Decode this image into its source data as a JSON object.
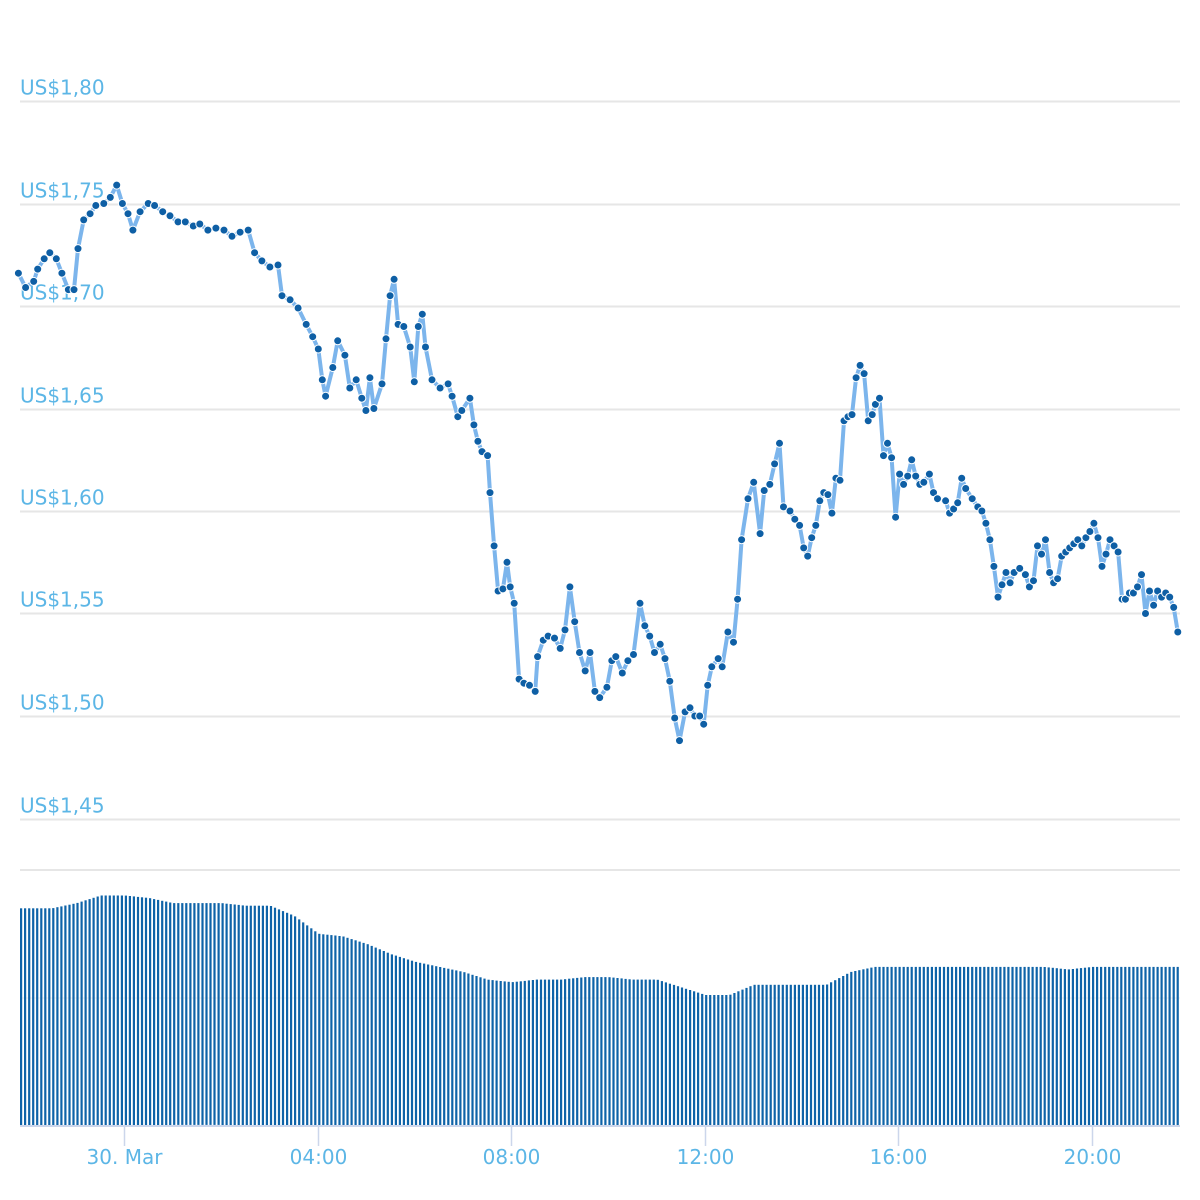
{
  "chart_data": {
    "type": "line",
    "title": "",
    "xlabel": "",
    "ylabel": "",
    "ylim": [
      1.4,
      1.8
    ],
    "y_ticks": [
      "US$1,80",
      "US$1,75",
      "US$1,70",
      "US$1,65",
      "US$1,60",
      "US$1,55",
      "US$1,50",
      "US$1,45"
    ],
    "y_tick_values": [
      1.8,
      1.75,
      1.7,
      1.65,
      1.6,
      1.55,
      1.5,
      1.45
    ],
    "x_ticks": [
      "30. Mar",
      "04:00",
      "08:00",
      "12:00",
      "16:00",
      "20:00"
    ],
    "x_tick_times": [
      "00:00",
      "04:00",
      "08:00",
      "12:00",
      "16:00",
      "20:00"
    ],
    "x_range": [
      "21:49",
      "21:47"
    ],
    "grid": true,
    "colors": {
      "line": "#7cb5ec",
      "marker": "#0e5fa5",
      "volume": "#0e63a8",
      "label": "#5cb6e6",
      "grid": "#e6e6e6",
      "tick": "#ccd6eb"
    },
    "series": [
      {
        "points": [
          [
            "21:49",
            1.716
          ],
          [
            "21:58",
            1.709
          ],
          [
            "22:08",
            1.712
          ],
          [
            "22:13",
            1.718
          ],
          [
            "22:21",
            1.723
          ],
          [
            "22:28",
            1.726
          ],
          [
            "22:36",
            1.723
          ],
          [
            "22:43",
            1.716
          ],
          [
            "22:51",
            1.708
          ],
          [
            "22:58",
            1.708
          ],
          [
            "23:03",
            1.728
          ],
          [
            "23:10",
            1.742
          ],
          [
            "23:18",
            1.745
          ],
          [
            "23:25",
            1.749
          ],
          [
            "23:35",
            1.75
          ],
          [
            "23:43",
            1.753
          ],
          [
            "23:51",
            1.759
          ],
          [
            "23:58",
            1.75
          ],
          [
            "00:05",
            1.745
          ],
          [
            "00:11",
            1.737
          ],
          [
            "00:20",
            1.746
          ],
          [
            "00:30",
            1.75
          ],
          [
            "00:38",
            1.749
          ],
          [
            "00:48",
            1.746
          ],
          [
            "00:57",
            1.744
          ],
          [
            "01:07",
            1.741
          ],
          [
            "01:16",
            1.741
          ],
          [
            "01:26",
            1.739
          ],
          [
            "01:34",
            1.74
          ],
          [
            "01:44",
            1.737
          ],
          [
            "01:54",
            1.738
          ],
          [
            "02:04",
            1.737
          ],
          [
            "02:14",
            1.734
          ],
          [
            "02:24",
            1.736
          ],
          [
            "02:34",
            1.737
          ],
          [
            "02:42",
            1.726
          ],
          [
            "02:51",
            1.722
          ],
          [
            "03:01",
            1.719
          ],
          [
            "03:11",
            1.72
          ],
          [
            "03:16",
            1.705
          ],
          [
            "03:26",
            1.703
          ],
          [
            "03:36",
            1.699
          ],
          [
            "03:46",
            1.691
          ],
          [
            "03:54",
            1.685
          ],
          [
            "04:01",
            1.679
          ],
          [
            "04:06",
            1.664
          ],
          [
            "04:10",
            1.656
          ],
          [
            "04:19",
            1.67
          ],
          [
            "04:25",
            1.683
          ],
          [
            "04:34",
            1.676
          ],
          [
            "04:40",
            1.66
          ],
          [
            "04:48",
            1.664
          ],
          [
            "04:55",
            1.655
          ],
          [
            "05:00",
            1.649
          ],
          [
            "05:05",
            1.665
          ],
          [
            "05:10",
            1.65
          ],
          [
            "05:20",
            1.662
          ],
          [
            "05:25",
            1.684
          ],
          [
            "05:30",
            1.705
          ],
          [
            "05:35",
            1.713
          ],
          [
            "05:40",
            1.691
          ],
          [
            "05:47",
            1.69
          ],
          [
            "05:55",
            1.68
          ],
          [
            "06:00",
            1.663
          ],
          [
            "06:05",
            1.69
          ],
          [
            "06:10",
            1.696
          ],
          [
            "06:14",
            1.68
          ],
          [
            "06:22",
            1.664
          ],
          [
            "06:32",
            1.66
          ],
          [
            "06:42",
            1.662
          ],
          [
            "06:47",
            1.656
          ],
          [
            "06:54",
            1.646
          ],
          [
            "06:59",
            1.649
          ],
          [
            "07:09",
            1.655
          ],
          [
            "07:14",
            1.642
          ],
          [
            "07:19",
            1.634
          ],
          [
            "07:24",
            1.629
          ],
          [
            "07:31",
            1.627
          ],
          [
            "07:34",
            1.609
          ],
          [
            "07:39",
            1.583
          ],
          [
            "07:44",
            1.561
          ],
          [
            "07:50",
            1.562
          ],
          [
            "07:55",
            1.575
          ],
          [
            "07:59",
            1.563
          ],
          [
            "08:04",
            1.555
          ],
          [
            "08:10",
            1.518
          ],
          [
            "08:16",
            1.516
          ],
          [
            "08:23",
            1.515
          ],
          [
            "08:30",
            1.512
          ],
          [
            "08:33",
            1.529
          ],
          [
            "08:40",
            1.537
          ],
          [
            "08:46",
            1.539
          ],
          [
            "08:54",
            1.538
          ],
          [
            "09:01",
            1.533
          ],
          [
            "09:07",
            1.542
          ],
          [
            "09:13",
            1.563
          ],
          [
            "09:19",
            1.546
          ],
          [
            "09:25",
            1.531
          ],
          [
            "09:32",
            1.522
          ],
          [
            "09:38",
            1.531
          ],
          [
            "09:44",
            1.512
          ],
          [
            "09:50",
            1.509
          ],
          [
            "09:59",
            1.514
          ],
          [
            "10:05",
            1.527
          ],
          [
            "10:10",
            1.529
          ],
          [
            "10:18",
            1.521
          ],
          [
            "10:25",
            1.527
          ],
          [
            "10:32",
            1.53
          ],
          [
            "10:40",
            1.555
          ],
          [
            "10:46",
            1.544
          ],
          [
            "10:52",
            1.539
          ],
          [
            "10:58",
            1.531
          ],
          [
            "11:05",
            1.535
          ],
          [
            "11:11",
            1.528
          ],
          [
            "11:17",
            1.517
          ],
          [
            "11:23",
            1.499
          ],
          [
            "11:29",
            1.488
          ],
          [
            "11:36",
            1.502
          ],
          [
            "11:42",
            1.504
          ],
          [
            "11:48",
            1.5
          ],
          [
            "11:54",
            1.5
          ],
          [
            "11:59",
            1.496
          ],
          [
            "12:04",
            1.515
          ],
          [
            "12:09",
            1.524
          ],
          [
            "12:17",
            1.528
          ],
          [
            "12:22",
            1.524
          ],
          [
            "12:29",
            1.541
          ],
          [
            "12:36",
            1.536
          ],
          [
            "12:41",
            1.557
          ],
          [
            "12:46",
            1.586
          ],
          [
            "12:54",
            1.606
          ],
          [
            "13:01",
            1.614
          ],
          [
            "13:09",
            1.589
          ],
          [
            "13:14",
            1.61
          ],
          [
            "13:21",
            1.613
          ],
          [
            "13:27",
            1.623
          ],
          [
            "13:33",
            1.633
          ],
          [
            "13:38",
            1.602
          ],
          [
            "13:46",
            1.6
          ],
          [
            "13:52",
            1.596
          ],
          [
            "13:58",
            1.593
          ],
          [
            "14:03",
            1.582
          ],
          [
            "14:08",
            1.578
          ],
          [
            "14:13",
            1.587
          ],
          [
            "14:18",
            1.593
          ],
          [
            "14:23",
            1.605
          ],
          [
            "14:28",
            1.609
          ],
          [
            "14:33",
            1.608
          ],
          [
            "14:38",
            1.599
          ],
          [
            "14:43",
            1.616
          ],
          [
            "14:48",
            1.615
          ],
          [
            "14:53",
            1.644
          ],
          [
            "14:58",
            1.646
          ],
          [
            "15:03",
            1.647
          ],
          [
            "15:08",
            1.665
          ],
          [
            "15:13",
            1.671
          ],
          [
            "15:18",
            1.667
          ],
          [
            "15:23",
            1.644
          ],
          [
            "15:28",
            1.647
          ],
          [
            "15:32",
            1.652
          ],
          [
            "15:37",
            1.655
          ],
          [
            "15:42",
            1.627
          ],
          [
            "15:47",
            1.633
          ],
          [
            "15:52",
            1.626
          ],
          [
            "15:57",
            1.597
          ],
          [
            "16:02",
            1.618
          ],
          [
            "16:07",
            1.613
          ],
          [
            "16:12",
            1.617
          ],
          [
            "16:17",
            1.625
          ],
          [
            "16:22",
            1.617
          ],
          [
            "16:27",
            1.613
          ],
          [
            "16:32",
            1.614
          ],
          [
            "16:39",
            1.618
          ],
          [
            "16:44",
            1.609
          ],
          [
            "16:49",
            1.606
          ],
          [
            "16:59",
            1.605
          ],
          [
            "17:04",
            1.599
          ],
          [
            "17:09",
            1.601
          ],
          [
            "17:14",
            1.604
          ],
          [
            "17:19",
            1.616
          ],
          [
            "17:24",
            1.611
          ],
          [
            "17:32",
            1.606
          ],
          [
            "17:39",
            1.602
          ],
          [
            "17:44",
            1.6
          ],
          [
            "17:49",
            1.594
          ],
          [
            "17:54",
            1.586
          ],
          [
            "17:59",
            1.573
          ],
          [
            "18:04",
            1.558
          ],
          [
            "18:09",
            1.564
          ],
          [
            "18:14",
            1.57
          ],
          [
            "18:19",
            1.565
          ],
          [
            "18:24",
            1.57
          ],
          [
            "18:31",
            1.572
          ],
          [
            "18:38",
            1.569
          ],
          [
            "18:43",
            1.563
          ],
          [
            "18:48",
            1.566
          ],
          [
            "18:53",
            1.583
          ],
          [
            "18:58",
            1.579
          ],
          [
            "19:03",
            1.586
          ],
          [
            "19:08",
            1.57
          ],
          [
            "19:13",
            1.565
          ],
          [
            "19:18",
            1.567
          ],
          [
            "19:23",
            1.578
          ],
          [
            "19:28",
            1.58
          ],
          [
            "19:33",
            1.582
          ],
          [
            "19:38",
            1.584
          ],
          [
            "19:43",
            1.586
          ],
          [
            "19:48",
            1.583
          ],
          [
            "19:53",
            1.587
          ],
          [
            "19:58",
            1.59
          ],
          [
            "20:03",
            1.594
          ],
          [
            "20:08",
            1.587
          ],
          [
            "20:13",
            1.573
          ],
          [
            "20:18",
            1.579
          ],
          [
            "20:23",
            1.586
          ],
          [
            "20:28",
            1.583
          ],
          [
            "20:33",
            1.58
          ],
          [
            "20:38",
            1.557
          ],
          [
            "20:42",
            1.557
          ],
          [
            "20:47",
            1.56
          ],
          [
            "20:52",
            1.56
          ],
          [
            "20:57",
            1.563
          ],
          [
            "21:02",
            1.569
          ],
          [
            "21:07",
            1.55
          ],
          [
            "21:12",
            1.561
          ],
          [
            "21:17",
            1.554
          ],
          [
            "21:22",
            1.561
          ],
          [
            "21:27",
            1.558
          ],
          [
            "21:32",
            1.56
          ],
          [
            "21:37",
            1.558
          ],
          [
            "21:42",
            1.553
          ],
          [
            "21:47",
            1.541
          ]
        ]
      }
    ],
    "volume": {
      "unit": "relative",
      "times": [
        "22:00",
        "22:30",
        "23:00",
        "23:30",
        "00:00",
        "00:30",
        "01:00",
        "01:30",
        "02:00",
        "02:30",
        "03:00",
        "03:30",
        "04:00",
        "04:30",
        "05:00",
        "05:30",
        "06:00",
        "06:30",
        "07:00",
        "07:30",
        "08:00",
        "08:30",
        "09:00",
        "09:30",
        "10:00",
        "10:30",
        "11:00",
        "11:30",
        "12:00",
        "12:30",
        "13:00",
        "13:30",
        "14:00",
        "14:30",
        "15:00",
        "15:30",
        "16:00",
        "16:30",
        "17:00",
        "17:30",
        "18:00",
        "18:30",
        "19:00",
        "19:30",
        "20:00",
        "20:30",
        "21:00",
        "21:30"
      ],
      "values": [
        85,
        85,
        87,
        90,
        90,
        89,
        87,
        87,
        87,
        86,
        86,
        82,
        75,
        74,
        71,
        67,
        64,
        62,
        60,
        57,
        56,
        57,
        57,
        58,
        58,
        57,
        57,
        54,
        51,
        51,
        55,
        55,
        55,
        55,
        60,
        62,
        62,
        62,
        62,
        62,
        62,
        62,
        62,
        61,
        62,
        62,
        62,
        62
      ]
    }
  }
}
